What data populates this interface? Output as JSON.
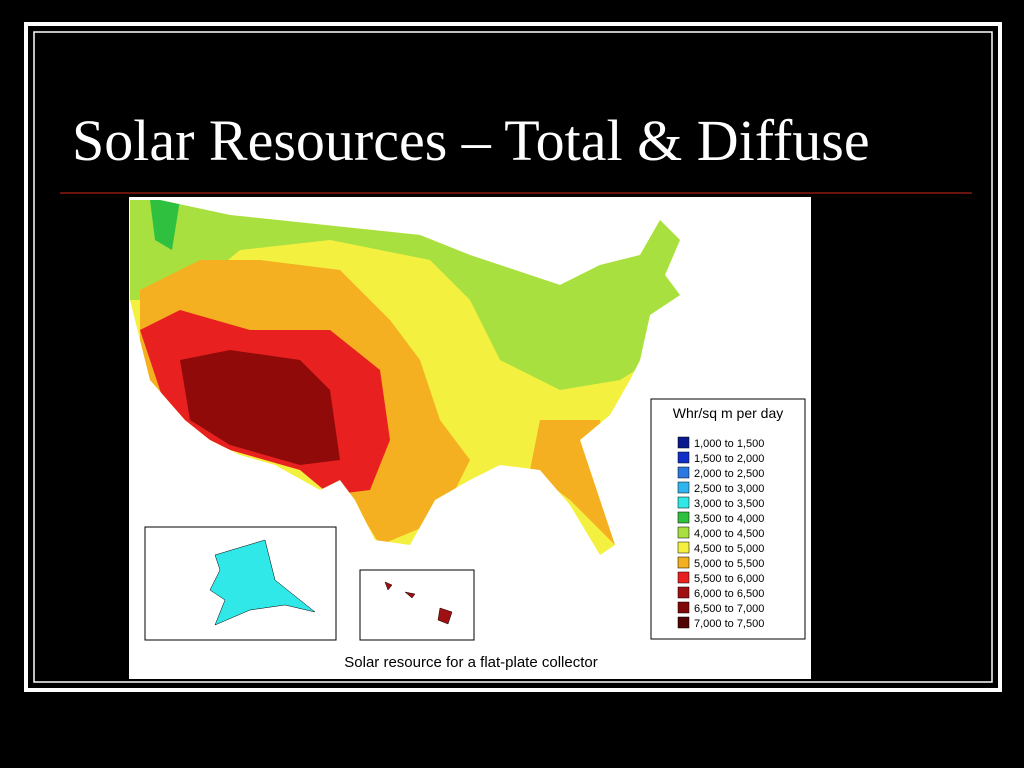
{
  "title": "Solar Resources – Total & Diffuse",
  "map": {
    "caption": "Solar resource for a flat-plate collector",
    "legend": {
      "title": "Whr/sq m per day",
      "items": [
        {
          "label": "1,000 to 1,500",
          "color": "#0a1a8c"
        },
        {
          "label": "1,500 to 2,000",
          "color": "#1030c8"
        },
        {
          "label": "2,000 to 2,500",
          "color": "#2a78e0"
        },
        {
          "label": "2,500 to 3,000",
          "color": "#30b4f0"
        },
        {
          "label": "3,000 to 3,500",
          "color": "#30e8e8"
        },
        {
          "label": "3,500 to 4,000",
          "color": "#30c040"
        },
        {
          "label": "4,000 to 4,500",
          "color": "#a8e040"
        },
        {
          "label": "4,500 to 5,000",
          "color": "#f4f040"
        },
        {
          "label": "5,000 to 5,500",
          "color": "#f4b020"
        },
        {
          "label": "5,500 to 6,000",
          "color": "#e82020"
        },
        {
          "label": "6,000 to 6,500",
          "color": "#a01010"
        },
        {
          "label": "6,500 to 7,000",
          "color": "#800808"
        },
        {
          "label": "7,000 to 7,500",
          "color": "#500404"
        }
      ]
    }
  }
}
